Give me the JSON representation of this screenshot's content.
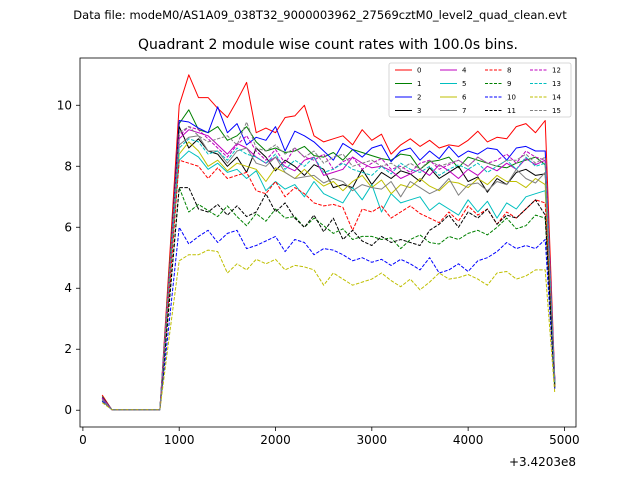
{
  "header": {
    "file_label": "Data file: modeM0/AS1A09_038T32_9000003962_27569cztM0_level2_quad_clean.evt"
  },
  "chart_data": {
    "type": "line",
    "title": "Quadrant 2 module wise count rates with 100.0s bins.",
    "xlabel": "",
    "ylabel": "",
    "x_offset_label": "+3.4203e8",
    "xlim": [
      -30,
      5120
    ],
    "ylim": [
      -0.55,
      11.55
    ],
    "x_ticks": [
      0,
      1000,
      2000,
      3000,
      4000,
      5000
    ],
    "y_ticks": [
      0,
      2,
      4,
      6,
      8,
      10
    ],
    "grid": false,
    "legend_position": "top-right",
    "legend_columns": 4,
    "x": [
      200,
      300,
      400,
      500,
      600,
      700,
      800,
      900,
      1000,
      1100,
      1200,
      1300,
      1400,
      1500,
      1600,
      1700,
      1800,
      1900,
      2000,
      2100,
      2200,
      2300,
      2400,
      2500,
      2600,
      2700,
      2800,
      2900,
      3000,
      3100,
      3200,
      3300,
      3400,
      3500,
      3600,
      3700,
      3800,
      3900,
      4000,
      4100,
      4200,
      4300,
      4400,
      4500,
      4600,
      4700,
      4800,
      4900
    ],
    "series": [
      {
        "name": "0",
        "color": "#ff0000",
        "dash": "solid",
        "values": [
          0.5,
          0.02,
          0.02,
          0.02,
          0.02,
          0.02,
          0.02,
          5.0,
          10.0,
          11.0,
          10.25,
          10.25,
          9.9,
          9.6,
          10.15,
          10.75,
          9.1,
          9.25,
          9.1,
          9.6,
          9.65,
          10.0,
          9.0,
          8.8,
          8.9,
          9.0,
          8.7,
          9.2,
          8.85,
          9.05,
          8.4,
          8.7,
          8.9,
          8.65,
          8.85,
          8.6,
          8.7,
          8.65,
          8.85,
          9.15,
          8.8,
          8.95,
          8.9,
          9.3,
          9.4,
          9.1,
          9.5,
          1.0
        ]
      },
      {
        "name": "1",
        "color": "#008000",
        "dash": "solid",
        "values": [
          0.45,
          0.02,
          0.02,
          0.02,
          0.02,
          0.02,
          0.02,
          4.7,
          9.4,
          9.85,
          9.2,
          9.1,
          9.3,
          8.85,
          9.0,
          9.3,
          8.8,
          8.5,
          8.6,
          8.45,
          8.5,
          8.65,
          8.35,
          8.3,
          8.45,
          8.2,
          8.55,
          8.45,
          8.35,
          8.25,
          8.2,
          8.4,
          8.35,
          7.9,
          8.15,
          8.2,
          8.3,
          7.95,
          8.3,
          8.2,
          8.1,
          8.0,
          7.95,
          8.1,
          8.2,
          8.3,
          8.05,
          0.9
        ]
      },
      {
        "name": "2",
        "color": "#0000ff",
        "dash": "solid",
        "values": [
          0.42,
          0.02,
          0.02,
          0.02,
          0.02,
          0.02,
          0.02,
          4.5,
          9.5,
          9.45,
          9.25,
          9.1,
          9.95,
          9.1,
          9.4,
          8.7,
          8.95,
          8.85,
          9.3,
          8.5,
          9.15,
          9.0,
          8.8,
          8.5,
          8.2,
          8.75,
          8.55,
          8.3,
          8.6,
          8.7,
          8.15,
          8.5,
          8.6,
          8.2,
          8.5,
          8.25,
          8.65,
          8.3,
          8.5,
          8.4,
          8.6,
          8.55,
          8.2,
          8.6,
          8.65,
          8.5,
          8.5,
          0.95
        ]
      },
      {
        "name": "3",
        "color": "#000000",
        "dash": "solid",
        "values": [
          0.4,
          0.02,
          0.02,
          0.02,
          0.02,
          0.02,
          0.02,
          4.4,
          9.3,
          8.6,
          8.9,
          8.5,
          8.4,
          8.0,
          8.3,
          7.8,
          8.6,
          8.3,
          7.85,
          8.2,
          8.0,
          7.7,
          8.05,
          7.9,
          7.3,
          7.4,
          7.3,
          7.9,
          7.4,
          7.8,
          7.6,
          7.85,
          7.75,
          7.5,
          7.95,
          7.6,
          7.8,
          8.0,
          7.5,
          7.65,
          7.15,
          7.6,
          7.4,
          7.8,
          7.9,
          7.7,
          7.75,
          0.9
        ]
      },
      {
        "name": "4",
        "color": "#bf00bf",
        "dash": "solid",
        "values": [
          0.4,
          0.02,
          0.02,
          0.02,
          0.02,
          0.02,
          0.02,
          4.5,
          8.9,
          9.2,
          9.1,
          9.0,
          8.7,
          8.4,
          8.75,
          8.6,
          8.3,
          8.1,
          8.3,
          8.0,
          7.85,
          8.2,
          8.3,
          7.7,
          7.8,
          7.9,
          8.3,
          8.1,
          7.95,
          8.0,
          7.85,
          7.6,
          7.75,
          7.9,
          7.7,
          8.05,
          7.85,
          7.6,
          7.9,
          7.7,
          8.0,
          7.85,
          8.1,
          7.9,
          8.25,
          8.05,
          8.2,
          0.95
        ]
      },
      {
        "name": "5",
        "color": "#00bfbf",
        "dash": "solid",
        "values": [
          0.35,
          0.02,
          0.02,
          0.02,
          0.02,
          0.02,
          0.02,
          4.3,
          8.2,
          8.5,
          8.3,
          7.9,
          8.1,
          7.8,
          7.9,
          7.6,
          7.85,
          7.2,
          7.5,
          7.25,
          7.4,
          7.0,
          7.5,
          7.1,
          6.95,
          6.8,
          7.3,
          6.9,
          7.4,
          6.5,
          7.1,
          6.8,
          6.9,
          7.0,
          6.55,
          6.8,
          6.6,
          6.4,
          6.9,
          6.5,
          6.85,
          6.3,
          6.8,
          6.6,
          7.0,
          7.1,
          7.2,
          0.85
        ]
      },
      {
        "name": "6",
        "color": "#bfbf00",
        "dash": "solid",
        "values": [
          0.3,
          0.02,
          0.02,
          0.02,
          0.02,
          0.02,
          0.02,
          4.2,
          8.4,
          8.8,
          8.5,
          8.0,
          8.2,
          7.85,
          8.1,
          8.0,
          7.9,
          7.5,
          7.95,
          7.8,
          7.6,
          7.9,
          7.6,
          7.35,
          7.5,
          7.2,
          7.5,
          7.7,
          7.3,
          7.55,
          7.1,
          7.4,
          7.3,
          7.6,
          7.35,
          7.2,
          7.5,
          7.45,
          7.3,
          7.6,
          7.4,
          7.7,
          7.5,
          7.5,
          7.3,
          7.6,
          7.4,
          0.8
        ]
      },
      {
        "name": "7",
        "color": "#808080",
        "dash": "solid",
        "values": [
          0.3,
          0.02,
          0.02,
          0.02,
          0.02,
          0.02,
          0.02,
          4.3,
          8.7,
          8.95,
          9.0,
          8.5,
          8.5,
          8.1,
          8.5,
          8.6,
          8.1,
          8.0,
          8.3,
          7.8,
          7.6,
          7.65,
          7.7,
          7.45,
          7.6,
          7.5,
          7.2,
          7.4,
          7.3,
          7.25,
          7.5,
          7.0,
          7.5,
          7.3,
          7.1,
          7.25,
          7.6,
          7.05,
          7.4,
          7.45,
          7.2,
          7.5,
          7.4,
          7.9,
          7.6,
          7.45,
          7.8,
          0.85
        ]
      },
      {
        "name": "8",
        "color": "#ff0000",
        "dash": "dashed",
        "values": [
          0.4,
          0.02,
          0.02,
          0.02,
          0.02,
          0.02,
          0.02,
          4.0,
          8.2,
          8.1,
          8.0,
          7.6,
          7.95,
          7.6,
          7.7,
          7.8,
          7.2,
          7.1,
          7.5,
          7.0,
          7.3,
          7.1,
          6.8,
          6.7,
          6.75,
          6.65,
          5.9,
          6.6,
          6.5,
          6.7,
          6.3,
          6.5,
          6.7,
          6.45,
          6.3,
          6.15,
          6.5,
          6.2,
          6.7,
          6.4,
          6.6,
          6.1,
          6.5,
          6.3,
          6.6,
          6.9,
          6.8,
          0.8
        ]
      },
      {
        "name": "9",
        "color": "#008000",
        "dash": "dashed",
        "values": [
          0.35,
          0.02,
          0.02,
          0.02,
          0.02,
          0.02,
          0.02,
          3.6,
          7.3,
          6.5,
          6.75,
          6.55,
          6.35,
          6.7,
          6.35,
          6.05,
          6.45,
          6.2,
          6.6,
          6.3,
          6.35,
          6.0,
          6.3,
          6.05,
          5.8,
          5.95,
          5.6,
          5.7,
          5.7,
          5.6,
          5.65,
          5.3,
          5.6,
          5.75,
          5.5,
          5.45,
          5.7,
          5.6,
          5.8,
          5.9,
          5.75,
          6.0,
          6.3,
          5.95,
          6.05,
          6.4,
          6.3,
          0.75
        ]
      },
      {
        "name": "10",
        "color": "#0000ff",
        "dash": "dashed",
        "values": [
          0.3,
          0.02,
          0.02,
          0.02,
          0.02,
          0.02,
          0.02,
          3.0,
          6.0,
          5.45,
          5.7,
          5.9,
          5.5,
          5.8,
          5.9,
          5.3,
          5.4,
          5.55,
          5.7,
          5.2,
          5.6,
          5.5,
          5.1,
          5.3,
          5.25,
          5.1,
          4.9,
          5.0,
          4.85,
          4.95,
          4.75,
          4.95,
          4.8,
          4.6,
          5.0,
          4.5,
          4.6,
          4.8,
          4.55,
          4.9,
          5.0,
          5.2,
          5.5,
          5.3,
          5.4,
          5.3,
          5.6,
          0.7
        ]
      },
      {
        "name": "11",
        "color": "#000000",
        "dash": "dashed",
        "values": [
          0.35,
          0.02,
          0.02,
          0.02,
          0.02,
          0.02,
          0.02,
          3.7,
          7.3,
          7.3,
          6.6,
          6.5,
          6.75,
          6.4,
          6.7,
          6.35,
          6.5,
          7.1,
          6.5,
          6.8,
          6.3,
          6.0,
          6.4,
          5.85,
          6.3,
          5.6,
          5.9,
          5.55,
          5.4,
          5.7,
          5.5,
          5.6,
          5.5,
          5.4,
          5.9,
          6.1,
          6.4,
          6.0,
          6.5,
          6.3,
          6.6,
          6.1,
          6.4,
          6.3,
          6.6,
          6.9,
          6.4,
          0.75
        ]
      },
      {
        "name": "12",
        "color": "#bf00bf",
        "dash": "dashed",
        "values": [
          0.4,
          0.02,
          0.02,
          0.02,
          0.02,
          0.02,
          0.02,
          4.5,
          9.0,
          9.3,
          9.2,
          8.9,
          8.6,
          8.3,
          8.7,
          9.0,
          8.5,
          8.2,
          8.55,
          8.1,
          8.6,
          8.3,
          8.2,
          8.4,
          7.9,
          8.15,
          8.3,
          7.9,
          8.1,
          8.25,
          7.9,
          8.0,
          7.8,
          8.1,
          8.2,
          7.9,
          8.05,
          8.2,
          8.0,
          8.3,
          8.1,
          8.2,
          8.4,
          8.1,
          8.5,
          8.3,
          8.2,
          0.95
        ]
      },
      {
        "name": "13",
        "color": "#00bfbf",
        "dash": "dashed",
        "values": [
          0.35,
          0.02,
          0.02,
          0.02,
          0.02,
          0.02,
          0.02,
          4.4,
          8.6,
          8.9,
          8.8,
          8.4,
          8.5,
          8.2,
          8.6,
          8.4,
          8.3,
          8.1,
          8.4,
          7.9,
          8.2,
          8.0,
          8.3,
          7.8,
          7.9,
          8.1,
          7.9,
          7.8,
          7.7,
          8.0,
          7.75,
          8.1,
          7.9,
          7.8,
          8.0,
          7.7,
          7.9,
          8.05,
          7.9,
          8.1,
          7.8,
          8.0,
          8.2,
          7.9,
          8.3,
          8.0,
          8.1,
          0.9
        ]
      },
      {
        "name": "14",
        "color": "#bfbf00",
        "dash": "dashed",
        "values": [
          0.25,
          0.02,
          0.02,
          0.02,
          0.02,
          0.02,
          0.02,
          2.5,
          4.9,
          5.1,
          5.1,
          5.25,
          5.2,
          4.5,
          4.8,
          4.6,
          4.95,
          4.8,
          4.95,
          4.6,
          4.75,
          4.7,
          4.6,
          4.1,
          4.5,
          4.3,
          4.1,
          4.2,
          4.3,
          4.5,
          4.25,
          4.05,
          4.3,
          3.95,
          4.2,
          4.5,
          4.3,
          4.35,
          4.45,
          4.3,
          4.1,
          4.5,
          4.55,
          4.3,
          4.4,
          4.6,
          4.6,
          0.55
        ]
      },
      {
        "name": "15",
        "color": "#808080",
        "dash": "dashed",
        "values": [
          0.35,
          0.02,
          0.02,
          0.02,
          0.02,
          0.02,
          0.02,
          4.6,
          9.1,
          9.3,
          9.0,
          8.8,
          8.9,
          9.0,
          8.7,
          9.45,
          8.6,
          8.5,
          8.7,
          8.4,
          8.6,
          8.3,
          8.5,
          8.1,
          8.3,
          8.4,
          8.0,
          8.1,
          8.2,
          8.0,
          8.1,
          7.9,
          8.1,
          7.9,
          8.2,
          8.0,
          8.1,
          8.2,
          8.0,
          8.3,
          8.1,
          8.0,
          8.2,
          8.2,
          8.4,
          8.1,
          8.3,
          0.9
        ]
      }
    ]
  }
}
